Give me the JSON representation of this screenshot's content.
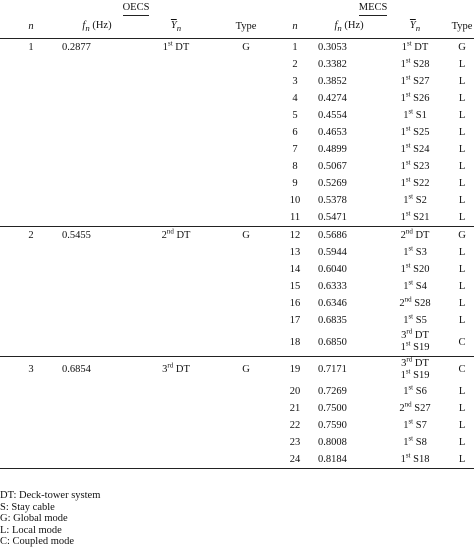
{
  "group_headers": {
    "left": "OECS",
    "right": "MECS"
  },
  "columns": {
    "left": [
      {
        "key": "n",
        "label": "n",
        "italic": true
      },
      {
        "key": "fn",
        "label": "fn (Hz)",
        "base": "f",
        "sub": "n",
        "unit": " (Hz)"
      },
      {
        "key": "yn",
        "label": "Yn",
        "base": "Y",
        "sub": "n"
      },
      {
        "key": "type",
        "label": "Type"
      }
    ],
    "right": [
      {
        "key": "n",
        "label": "n",
        "italic": true
      },
      {
        "key": "fn",
        "label": "fn (Hz)",
        "base": "f",
        "sub": "n",
        "unit": " (Hz)"
      },
      {
        "key": "yn",
        "label": "Yn",
        "base": "Y",
        "sub": "n"
      },
      {
        "key": "type",
        "label": "Type"
      }
    ]
  },
  "blocks": [
    {
      "oecs": {
        "n": "1",
        "fn": "0.2877",
        "mode_ord": "1",
        "mode_sup": "st",
        "mode_txt": " DT",
        "type": "G"
      },
      "mecs": [
        {
          "n": "1",
          "fn": "0.3053",
          "ord": "1",
          "sup": "st",
          "txt": " DT",
          "type": "G"
        },
        {
          "n": "2",
          "fn": "0.3382",
          "ord": "1",
          "sup": "st",
          "txt": " S28",
          "type": "L"
        },
        {
          "n": "3",
          "fn": "0.3852",
          "ord": "1",
          "sup": "st",
          "txt": " S27",
          "type": "L"
        },
        {
          "n": "4",
          "fn": "0.4274",
          "ord": "1",
          "sup": "st",
          "txt": " S26",
          "type": "L"
        },
        {
          "n": "5",
          "fn": "0.4554",
          "ord": "1",
          "sup": "st",
          "txt": " S1",
          "type": "L"
        },
        {
          "n": "6",
          "fn": "0.4653",
          "ord": "1",
          "sup": "st",
          "txt": " S25",
          "type": "L"
        },
        {
          "n": "7",
          "fn": "0.4899",
          "ord": "1",
          "sup": "st",
          "txt": " S24",
          "type": "L"
        },
        {
          "n": "8",
          "fn": "0.5067",
          "ord": "1",
          "sup": "st",
          "txt": " S23",
          "type": "L"
        },
        {
          "n": "9",
          "fn": "0.5269",
          "ord": "1",
          "sup": "st",
          "txt": " S22",
          "type": "L"
        },
        {
          "n": "10",
          "fn": "0.5378",
          "ord": "1",
          "sup": "st",
          "txt": " S2",
          "type": "L"
        },
        {
          "n": "11",
          "fn": "0.5471",
          "ord": "1",
          "sup": "st",
          "txt": " S21",
          "type": "L"
        }
      ]
    },
    {
      "oecs": {
        "n": "2",
        "fn": "0.5455",
        "mode_ord": "2",
        "mode_sup": "nd",
        "mode_txt": " DT",
        "type": "G"
      },
      "mecs": [
        {
          "n": "12",
          "fn": "0.5686",
          "ord": "2",
          "sup": "nd",
          "txt": " DT",
          "type": "G"
        },
        {
          "n": "13",
          "fn": "0.5944",
          "ord": "1",
          "sup": "st",
          "txt": " S3",
          "type": "L"
        },
        {
          "n": "14",
          "fn": "0.6040",
          "ord": "1",
          "sup": "st",
          "txt": " S20",
          "type": "L"
        },
        {
          "n": "15",
          "fn": "0.6333",
          "ord": "1",
          "sup": "st",
          "txt": " S4",
          "type": "L"
        },
        {
          "n": "16",
          "fn": "0.6346",
          "ord": "2",
          "sup": "nd",
          "txt": " S28",
          "type": "L"
        },
        {
          "n": "17",
          "fn": "0.6835",
          "ord": "1",
          "sup": "st",
          "txt": " S5",
          "type": "L"
        },
        {
          "n": "18",
          "fn": "0.6850",
          "ord": "3",
          "sup": "rd",
          "txt": " DT",
          "ord2": "1",
          "sup2": "st",
          "txt2": " S19",
          "type": "C"
        }
      ]
    },
    {
      "oecs": {
        "n": "3",
        "fn": "0.6854",
        "mode_ord": "3",
        "mode_sup": "rd",
        "mode_txt": " DT",
        "type": "G"
      },
      "mecs": [
        {
          "n": "19",
          "fn": "0.7171",
          "ord": "3",
          "sup": "rd",
          "txt": " DT",
          "ord2": "1",
          "sup2": "st",
          "txt2": " S19",
          "type": "C"
        },
        {
          "n": "20",
          "fn": "0.7269",
          "ord": "1",
          "sup": "st",
          "txt": " S6",
          "type": "L"
        },
        {
          "n": "21",
          "fn": "0.7500",
          "ord": "2",
          "sup": "nd",
          "txt": " S27",
          "type": "L"
        },
        {
          "n": "22",
          "fn": "0.7590",
          "ord": "1",
          "sup": "st",
          "txt": " S7",
          "type": "L"
        },
        {
          "n": "23",
          "fn": "0.8008",
          "ord": "1",
          "sup": "st",
          "txt": " S8",
          "type": "L"
        },
        {
          "n": "24",
          "fn": "0.8184",
          "ord": "1",
          "sup": "st",
          "txt": " S18",
          "type": "L"
        }
      ]
    }
  ],
  "notes": [
    "DT: Deck-tower system",
    "S: Stay cable",
    "G: Global mode",
    "L: Local mode",
    "C: Coupled mode"
  ]
}
